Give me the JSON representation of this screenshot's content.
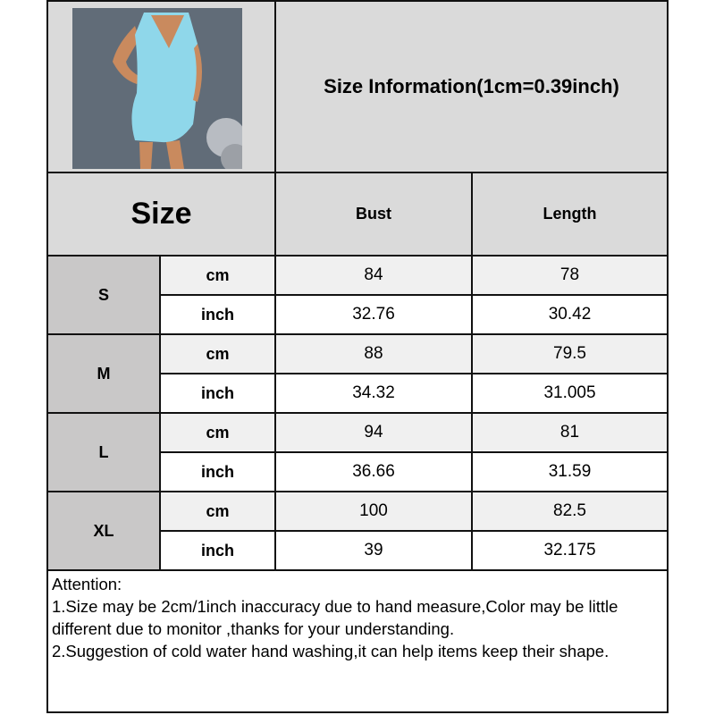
{
  "product_photo": {
    "description_icon": "light-blue-satin-mini-dress-photo"
  },
  "title": "Size Information(1cm=0.39inch)",
  "header": {
    "size": "Size",
    "bust": "Bust",
    "length": "Length"
  },
  "rows": [
    {
      "size": "S",
      "cm": {
        "unit": "cm",
        "bust": "84",
        "length": "78"
      },
      "inch": {
        "unit": "inch",
        "bust": "32.76",
        "length": "30.42"
      }
    },
    {
      "size": "M",
      "cm": {
        "unit": "cm",
        "bust": "88",
        "length": "79.5"
      },
      "inch": {
        "unit": "inch",
        "bust": "34.32",
        "length": "31.005"
      }
    },
    {
      "size": "L",
      "cm": {
        "unit": "cm",
        "bust": "94",
        "length": "81"
      },
      "inch": {
        "unit": "inch",
        "bust": "36.66",
        "length": "31.59"
      }
    },
    {
      "size": "XL",
      "cm": {
        "unit": "cm",
        "bust": "100",
        "length": "82.5"
      },
      "inch": {
        "unit": "inch",
        "bust": "39",
        "length": "32.175"
      }
    }
  ],
  "attention": {
    "heading": "Attention:",
    "line1": "1.Size may be 2cm/1inch inaccuracy due to hand measure,Color may be little different due to monitor ,thanks for your understanding.",
    "line2": "2.Suggestion of cold water hand washing,it can help items keep their shape."
  }
}
